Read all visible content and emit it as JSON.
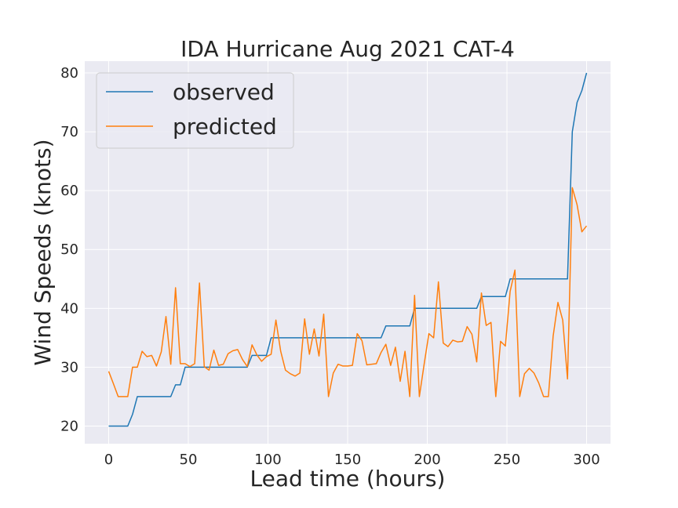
{
  "chart_data": {
    "type": "line",
    "title": "IDA Hurricane Aug 2021 CAT-4",
    "xlabel": "Lead time (hours)",
    "ylabel": "Wind Speeds (knots)",
    "xlim": [
      -15,
      315
    ],
    "ylim": [
      17,
      82
    ],
    "xticks": [
      0,
      50,
      100,
      150,
      200,
      250,
      300
    ],
    "yticks": [
      20,
      30,
      40,
      50,
      60,
      70,
      80
    ],
    "grid": true,
    "legend_position": "upper-left",
    "series": [
      {
        "name": "observed",
        "color": "#1f77b4",
        "points": [
          [
            0,
            20
          ],
          [
            6,
            20
          ],
          [
            12,
            20
          ],
          [
            15,
            22
          ],
          [
            18,
            25
          ],
          [
            24,
            25
          ],
          [
            30,
            25
          ],
          [
            36,
            25
          ],
          [
            39,
            25
          ],
          [
            42,
            27
          ],
          [
            45,
            27
          ],
          [
            48,
            30
          ],
          [
            51,
            30
          ],
          [
            54,
            30
          ],
          [
            57,
            30
          ],
          [
            60,
            30
          ],
          [
            66,
            30
          ],
          [
            72,
            30
          ],
          [
            78,
            30
          ],
          [
            84,
            30
          ],
          [
            87,
            30
          ],
          [
            90,
            32
          ],
          [
            96,
            32
          ],
          [
            99,
            32
          ],
          [
            102,
            35
          ],
          [
            108,
            35
          ],
          [
            114,
            35
          ],
          [
            120,
            35
          ],
          [
            126,
            35
          ],
          [
            132,
            35
          ],
          [
            138,
            35
          ],
          [
            144,
            35
          ],
          [
            150,
            35
          ],
          [
            156,
            35
          ],
          [
            162,
            35
          ],
          [
            168,
            35
          ],
          [
            171,
            35
          ],
          [
            174,
            37
          ],
          [
            180,
            37
          ],
          [
            186,
            37
          ],
          [
            189,
            37
          ],
          [
            192,
            40
          ],
          [
            198,
            40
          ],
          [
            204,
            40
          ],
          [
            210,
            40
          ],
          [
            216,
            40
          ],
          [
            222,
            40
          ],
          [
            228,
            40
          ],
          [
            231,
            40
          ],
          [
            234,
            42
          ],
          [
            240,
            42
          ],
          [
            246,
            42
          ],
          [
            249,
            42
          ],
          [
            252,
            45
          ],
          [
            258,
            45
          ],
          [
            264,
            45
          ],
          [
            270,
            45
          ],
          [
            276,
            45
          ],
          [
            282,
            45
          ],
          [
            288,
            45
          ],
          [
            291,
            70
          ],
          [
            294,
            75
          ],
          [
            297,
            77
          ],
          [
            300,
            80
          ]
        ]
      },
      {
        "name": "predicted",
        "color": "#ff7f0e",
        "points": [
          [
            0,
            29.3
          ],
          [
            3,
            27.2
          ],
          [
            6,
            25
          ],
          [
            9,
            25
          ],
          [
            12,
            25
          ],
          [
            15,
            30
          ],
          [
            18,
            30
          ],
          [
            21,
            32.7
          ],
          [
            24,
            31.8
          ],
          [
            27,
            32
          ],
          [
            30,
            30.2
          ],
          [
            33,
            32.6
          ],
          [
            36,
            38.6
          ],
          [
            39,
            30.5
          ],
          [
            42,
            43.5
          ],
          [
            45,
            30.6
          ],
          [
            48,
            30.6
          ],
          [
            51,
            30.1
          ],
          [
            54,
            30.6
          ],
          [
            57,
            44.3
          ],
          [
            60,
            30.1
          ],
          [
            63,
            29.5
          ],
          [
            66,
            32.9
          ],
          [
            69,
            30.3
          ],
          [
            72,
            30.5
          ],
          [
            75,
            32.3
          ],
          [
            78,
            32.8
          ],
          [
            81,
            33
          ],
          [
            84,
            31.3
          ],
          [
            87,
            30.1
          ],
          [
            90,
            33.8
          ],
          [
            93,
            32.1
          ],
          [
            96,
            31
          ],
          [
            99,
            31.8
          ],
          [
            102,
            32.2
          ],
          [
            105,
            38
          ],
          [
            108,
            32.7
          ],
          [
            111,
            29.5
          ],
          [
            114,
            28.9
          ],
          [
            117,
            28.5
          ],
          [
            120,
            29
          ],
          [
            123,
            38.2
          ],
          [
            126,
            32.2
          ],
          [
            129,
            36.5
          ],
          [
            132,
            31.9
          ],
          [
            135,
            39
          ],
          [
            138,
            25
          ],
          [
            141,
            29
          ],
          [
            144,
            30.5
          ],
          [
            147,
            30.2
          ],
          [
            150,
            30.2
          ],
          [
            153,
            30.3
          ],
          [
            156,
            35.7
          ],
          [
            159,
            34.5
          ],
          [
            162,
            30.4
          ],
          [
            165,
            30.5
          ],
          [
            168,
            30.6
          ],
          [
            171,
            32.5
          ],
          [
            174,
            33.9
          ],
          [
            177,
            30.3
          ],
          [
            180,
            33.4
          ],
          [
            183,
            27.6
          ],
          [
            186,
            32.7
          ],
          [
            189,
            25
          ],
          [
            192,
            42.2
          ],
          [
            195,
            25
          ],
          [
            198,
            30.5
          ],
          [
            201,
            35.7
          ],
          [
            204,
            35
          ],
          [
            207,
            44.5
          ],
          [
            210,
            34.1
          ],
          [
            213,
            33.5
          ],
          [
            216,
            34.6
          ],
          [
            219,
            34.3
          ],
          [
            222,
            34.4
          ],
          [
            225,
            36.9
          ],
          [
            228,
            35.6
          ],
          [
            231,
            30.9
          ],
          [
            234,
            42.6
          ],
          [
            237,
            37.1
          ],
          [
            240,
            37.6
          ],
          [
            243,
            25
          ],
          [
            246,
            34.4
          ],
          [
            249,
            33.6
          ],
          [
            252,
            42.9
          ],
          [
            255,
            46.5
          ],
          [
            258,
            25
          ],
          [
            261,
            28.9
          ],
          [
            264,
            29.8
          ],
          [
            267,
            29
          ],
          [
            270,
            27.3
          ],
          [
            273,
            25
          ],
          [
            276,
            25
          ],
          [
            279,
            35.3
          ],
          [
            282,
            41
          ],
          [
            285,
            38
          ],
          [
            288,
            28
          ],
          [
            291,
            60.5
          ],
          [
            294,
            57.6
          ],
          [
            297,
            53
          ],
          [
            300,
            54
          ]
        ]
      }
    ]
  }
}
